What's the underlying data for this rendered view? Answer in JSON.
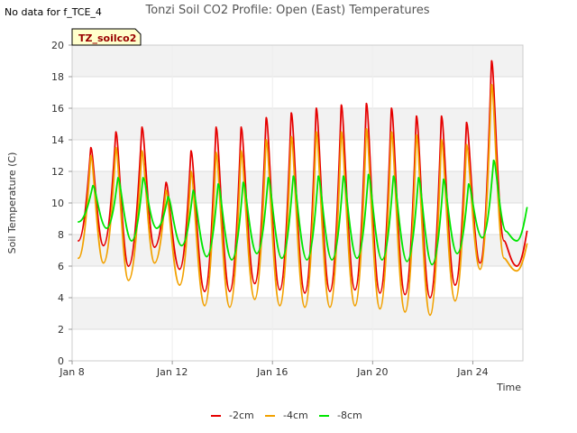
{
  "note": "No data for f_TCE_4",
  "chart_data": {
    "type": "line",
    "title": "Tonzi Soil CO2 Profile: Open (East) Temperatures",
    "xlabel": "Time",
    "ylabel": "Soil Temperature (C)",
    "site_label": "TZ_soilco2",
    "ylim": [
      0,
      20
    ],
    "yticks": [
      0,
      2,
      4,
      6,
      8,
      10,
      12,
      14,
      16,
      18,
      20
    ],
    "xlim": [
      "Jan 8",
      "Jan 26"
    ],
    "xticks": [
      "Jan 8",
      "Jan 12",
      "Jan 16",
      "Jan 20",
      "Jan 24"
    ],
    "grid": true,
    "legend_position": "bottom",
    "series": [
      {
        "name": "-2cm",
        "color": "#e60000",
        "x": [
          "Jan 8 06:00",
          "Jan 8 18:00",
          "Jan 9 06:00",
          "Jan 9 18:00",
          "Jan 10 06:00",
          "Jan 10 19:00",
          "Jan 11 07:00",
          "Jan 11 18:00",
          "Jan 12 07:00",
          "Jan 12 18:00",
          "Jan 13 07:00",
          "Jan 13 18:00",
          "Jan 14 07:00",
          "Jan 14 18:00",
          "Jan 15 07:00",
          "Jan 15 18:00",
          "Jan 16 07:00",
          "Jan 16 18:00",
          "Jan 17 07:00",
          "Jan 17 18:00",
          "Jan 18 07:00",
          "Jan 18 18:00",
          "Jan 19 07:00",
          "Jan 19 18:00",
          "Jan 20 07:00",
          "Jan 20 18:00",
          "Jan 21 07:00",
          "Jan 21 18:00",
          "Jan 22 07:00",
          "Jan 22 18:00",
          "Jan 23 07:00",
          "Jan 23 18:00",
          "Jan 24 07:00",
          "Jan 24 18:00",
          "Jan 25 06:00",
          "Jan 25 18:00",
          "Jan 26 04:00"
        ],
        "y": [
          7.6,
          13.5,
          7.3,
          14.5,
          6.0,
          14.8,
          7.2,
          11.3,
          5.8,
          13.3,
          4.4,
          14.8,
          4.4,
          14.8,
          4.9,
          15.4,
          4.5,
          15.7,
          4.3,
          16.0,
          4.4,
          16.2,
          4.5,
          16.3,
          4.3,
          16.0,
          4.2,
          15.5,
          4.0,
          15.5,
          4.8,
          15.1,
          6.2,
          19.0,
          7.6,
          6.0,
          8.2
        ]
      },
      {
        "name": "-4cm",
        "color": "#f2a100",
        "x": [
          "Jan 8 06:00",
          "Jan 8 18:00",
          "Jan 9 06:00",
          "Jan 9 18:00",
          "Jan 10 06:00",
          "Jan 10 19:00",
          "Jan 11 07:00",
          "Jan 11 18:00",
          "Jan 12 07:00",
          "Jan 12 18:00",
          "Jan 13 07:00",
          "Jan 13 18:00",
          "Jan 14 07:00",
          "Jan 14 18:00",
          "Jan 15 07:00",
          "Jan 15 18:00",
          "Jan 16 07:00",
          "Jan 16 18:00",
          "Jan 17 07:00",
          "Jan 17 18:00",
          "Jan 18 07:00",
          "Jan 18 18:00",
          "Jan 19 07:00",
          "Jan 19 18:00",
          "Jan 20 07:00",
          "Jan 20 18:00",
          "Jan 21 07:00",
          "Jan 21 18:00",
          "Jan 22 07:00",
          "Jan 22 18:00",
          "Jan 23 07:00",
          "Jan 23 18:00",
          "Jan 24 07:00",
          "Jan 24 18:00",
          "Jan 25 06:00",
          "Jan 25 18:00",
          "Jan 26 04:00"
        ],
        "y": [
          6.5,
          13.0,
          6.2,
          13.5,
          5.1,
          13.3,
          6.2,
          10.8,
          4.8,
          12.0,
          3.5,
          13.2,
          3.4,
          13.3,
          3.9,
          14.0,
          3.5,
          14.2,
          3.4,
          14.5,
          3.4,
          14.5,
          3.5,
          14.7,
          3.3,
          14.5,
          3.1,
          14.3,
          2.9,
          14.0,
          3.8,
          13.7,
          5.8,
          17.5,
          6.5,
          5.7,
          7.4
        ]
      },
      {
        "name": "-8cm",
        "color": "#00e600",
        "x": [
          "Jan 8 06:00",
          "Jan 8 20:00",
          "Jan 9 09:00",
          "Jan 9 20:00",
          "Jan 10 09:00",
          "Jan 10 20:00",
          "Jan 11 09:00",
          "Jan 11 20:00",
          "Jan 12 09:00",
          "Jan 12 20:00",
          "Jan 13 09:00",
          "Jan 13 20:00",
          "Jan 14 09:00",
          "Jan 14 20:00",
          "Jan 15 09:00",
          "Jan 15 20:00",
          "Jan 16 09:00",
          "Jan 16 20:00",
          "Jan 17 09:00",
          "Jan 17 20:00",
          "Jan 18 09:00",
          "Jan 18 20:00",
          "Jan 19 09:00",
          "Jan 19 20:00",
          "Jan 20 09:00",
          "Jan 20 20:00",
          "Jan 21 09:00",
          "Jan 21 20:00",
          "Jan 22 09:00",
          "Jan 22 20:00",
          "Jan 23 09:00",
          "Jan 23 20:00",
          "Jan 24 09:00",
          "Jan 24 20:00",
          "Jan 25 08:00",
          "Jan 25 18:00",
          "Jan 26 04:00"
        ],
        "y": [
          8.8,
          11.1,
          8.4,
          11.6,
          7.6,
          11.6,
          8.4,
          10.4,
          7.3,
          10.8,
          6.6,
          11.2,
          6.4,
          11.3,
          6.8,
          11.6,
          6.5,
          11.7,
          6.4,
          11.7,
          6.4,
          11.7,
          6.5,
          11.8,
          6.4,
          11.7,
          6.3,
          11.6,
          6.1,
          11.5,
          6.8,
          11.2,
          7.8,
          12.7,
          8.2,
          7.6,
          9.7
        ]
      }
    ]
  }
}
